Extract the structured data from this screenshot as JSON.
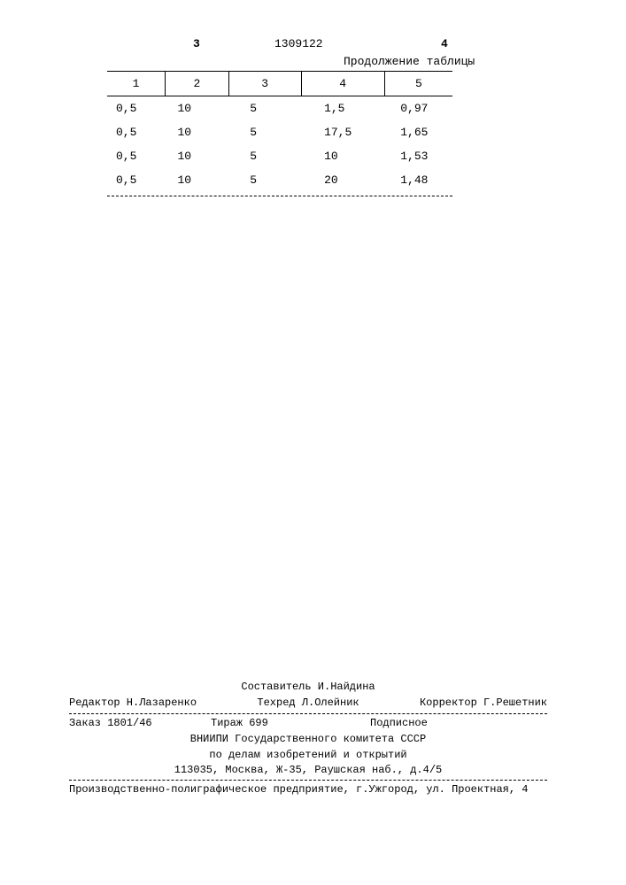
{
  "header": {
    "page_left": "3",
    "patent_number": "1309122",
    "page_right": "4"
  },
  "table": {
    "caption": "Продолжение таблицы",
    "columns": [
      "1",
      "2",
      "3",
      "4",
      "5"
    ],
    "rows": [
      [
        "0,5",
        "10",
        "5",
        "1,5",
        "0,97"
      ],
      [
        "0,5",
        "10",
        "5",
        "17,5",
        "1,65"
      ],
      [
        "0,5",
        "10",
        "5",
        "10",
        "1,53"
      ],
      [
        "0,5",
        "10",
        "5",
        "20",
        "1,48"
      ]
    ],
    "border_color": "#000000",
    "background_color": "#ffffff",
    "font_size_pt": 10
  },
  "footer": {
    "compiler": "Составитель И.Найдина",
    "editor": "Редактор Н.Лазаренко",
    "techred": "Техред Л.Олейник",
    "corrector": "Корректор Г.Решетник",
    "order": "Заказ 1801/46",
    "tirazh": "Тираж 699",
    "subscription": "Подписное",
    "org_line1": "ВНИИПИ Государственного комитета СССР",
    "org_line2": "по делам изобретений и открытий",
    "address": "113035, Москва, Ж-35, Раушская наб., д.4/5",
    "printer": "Производственно-полиграфическое предприятие, г.Ужгород, ул. Проектная, 4"
  }
}
